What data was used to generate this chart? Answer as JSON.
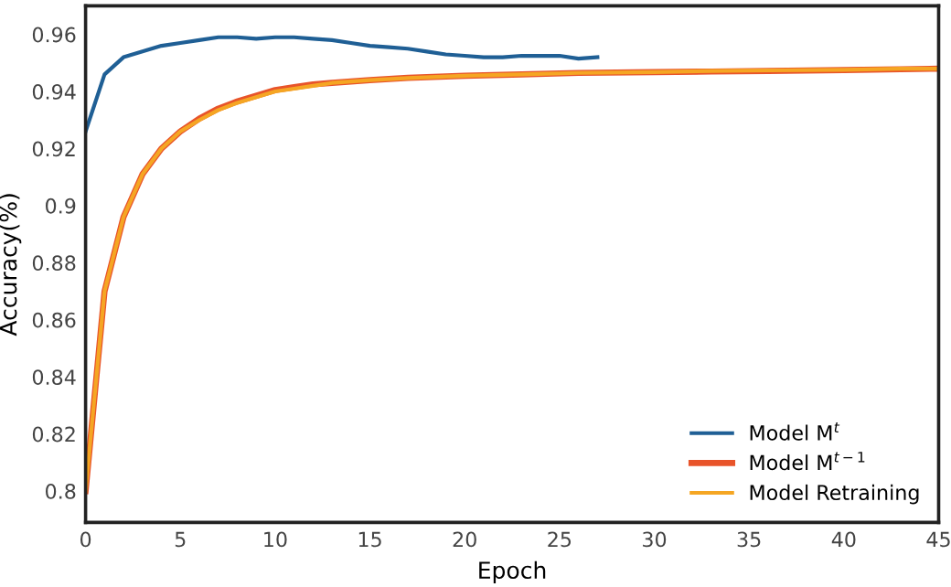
{
  "chart_data": {
    "type": "line",
    "xlabel": "Epoch",
    "ylabel": "Accuracy(%)",
    "xlim": [
      0,
      45
    ],
    "xticks": [
      0,
      5,
      10,
      15,
      20,
      25,
      30,
      35,
      40,
      45
    ],
    "ylim": [
      0.789,
      0.97
    ],
    "yticks": [
      {
        "value": 0.8,
        "label": "0.8"
      },
      0.82,
      0.84,
      0.86,
      0.88,
      {
        "value": 0.9,
        "label": "0.9"
      },
      0.92,
      0.94,
      0.96
    ],
    "grid": false,
    "legend": "bottom right",
    "series": [
      {
        "name": "Model M$^{t}$",
        "color": "#1f5f95",
        "x": [
          0,
          1,
          2,
          3,
          4,
          5,
          6,
          7,
          8,
          9,
          10,
          11,
          12,
          13,
          14,
          15,
          16,
          17,
          18,
          19,
          20,
          21,
          22,
          23,
          24,
          25,
          26,
          27
        ],
        "values": [
          0.926,
          0.946,
          0.952,
          0.954,
          0.956,
          0.957,
          0.958,
          0.959,
          0.959,
          0.9585,
          0.959,
          0.959,
          0.9585,
          0.958,
          0.957,
          0.956,
          0.9555,
          0.955,
          0.954,
          0.953,
          0.9525,
          0.952,
          0.952,
          0.9525,
          0.9525,
          0.9525,
          0.9515,
          0.952
        ]
      },
      {
        "name": "Model M$^{t−1}$",
        "color": "#e8542a",
        "x": [
          0,
          1,
          2,
          3,
          4,
          5,
          6,
          7,
          8,
          9,
          10,
          11,
          12,
          13,
          14,
          15,
          17,
          20,
          23,
          26,
          30,
          33,
          36,
          40,
          43,
          45
        ],
        "values": [
          0.8,
          0.87,
          0.896,
          0.911,
          0.92,
          0.926,
          0.9305,
          0.934,
          0.9365,
          0.9385,
          0.9405,
          0.9415,
          0.9425,
          0.943,
          0.9435,
          0.944,
          0.9448,
          0.9455,
          0.946,
          0.9465,
          0.9468,
          0.947,
          0.9472,
          0.9475,
          0.9478,
          0.948
        ]
      },
      {
        "name": "Model Retraining",
        "color": "#f5a623",
        "x": [
          0,
          1,
          2,
          3,
          4,
          5,
          6,
          7,
          8,
          9,
          10,
          11,
          12,
          13,
          14,
          15,
          17,
          20,
          23,
          26,
          30,
          33,
          36,
          40,
          43,
          45
        ],
        "values": [
          0.8,
          0.87,
          0.896,
          0.911,
          0.92,
          0.926,
          0.93,
          0.9335,
          0.936,
          0.938,
          0.94,
          0.941,
          0.942,
          0.943,
          0.9435,
          0.944,
          0.9447,
          0.9455,
          0.946,
          0.9465,
          0.9468,
          0.9472,
          0.9474,
          0.9476,
          0.948,
          0.948
        ]
      }
    ]
  }
}
